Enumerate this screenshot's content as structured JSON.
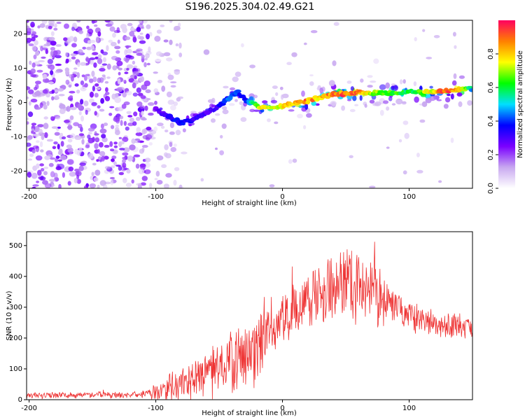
{
  "chart_data": [
    {
      "type": "heatmap",
      "title": "S196.2025.304.02.49.G21",
      "xlabel": "Height of straight line (km)",
      "ylabel": "Frequency (Hz)",
      "xlim": [
        -202,
        150
      ],
      "ylim": [
        -25,
        24
      ],
      "x_ticks": [
        -200,
        -100,
        0,
        100
      ],
      "x_tick_labels": [
        "-200",
        "-100",
        "0",
        "100"
      ],
      "y_ticks": [
        20,
        10,
        0,
        -10,
        -20
      ],
      "y_tick_labels": [
        "20",
        "10",
        "0",
        "-10",
        "-20"
      ],
      "colorbar": {
        "label": "Normalized spectral amplitude",
        "range": [
          0,
          1
        ],
        "ticks": [
          0.0,
          0.2,
          0.4,
          0.6,
          0.8
        ],
        "tick_labels": [
          "0.0",
          "0.2",
          "0.4",
          "0.6",
          "0.8"
        ],
        "colors": [
          "#ffffff",
          "#c8a8f0",
          "#7a00ff",
          "#0000ff",
          "#00e0ff",
          "#00ff00",
          "#ffff00",
          "#ff8000",
          "#ff0060"
        ]
      },
      "ridge": {
        "x": [
          -100,
          -90,
          -80,
          -70,
          -60,
          -50,
          -40,
          -35,
          -30,
          -25,
          -20,
          -15,
          -10,
          0,
          10,
          20,
          30,
          40,
          50,
          60,
          70,
          80,
          90,
          100,
          110,
          120,
          130,
          140,
          150
        ],
        "freq": [
          -2,
          -4,
          -6,
          -5,
          -3,
          -1,
          2,
          3,
          1,
          0,
          -1,
          -1.5,
          -1.5,
          -1,
          0,
          0.5,
          1.5,
          2.5,
          2.5,
          3,
          2.8,
          2.8,
          3,
          3,
          3,
          3.2,
          3.5,
          3.8,
          4
        ],
        "amp": [
          0.25,
          0.35,
          0.4,
          0.35,
          0.3,
          0.35,
          0.45,
          0.4,
          0.4,
          0.55,
          0.7,
          0.85,
          0.8,
          0.8,
          0.85,
          0.9,
          0.85,
          0.9,
          0.95,
          0.9,
          0.75,
          0.7,
          0.65,
          0.6,
          0.7,
          0.85,
          0.95,
          0.9,
          0.5
        ]
      }
    },
    {
      "type": "line",
      "xlabel": "Height of straight line (km)",
      "ylabel": "SNR (10 * v/v)",
      "xlim": [
        -202,
        150
      ],
      "ylim": [
        0,
        545
      ],
      "x_ticks": [
        -200,
        -100,
        0,
        100
      ],
      "x_tick_labels": [
        "-200",
        "-100",
        "0",
        "100"
      ],
      "y_ticks": [
        0,
        100,
        200,
        300,
        400,
        500
      ],
      "y_tick_labels": [
        "0",
        "100",
        "200",
        "300",
        "400",
        "500"
      ],
      "color": "#ee3333",
      "envelope": {
        "x": [
          -202,
          -180,
          -160,
          -140,
          -120,
          -105,
          -100,
          -90,
          -80,
          -70,
          -60,
          -50,
          -40,
          -30,
          -20,
          -10,
          0,
          10,
          20,
          30,
          40,
          50,
          60,
          70,
          80,
          90,
          100,
          110,
          120,
          130,
          140,
          150
        ],
        "mean": [
          15,
          15,
          15,
          15,
          15,
          18,
          25,
          40,
          55,
          70,
          80,
          100,
          120,
          145,
          160,
          210,
          260,
          300,
          330,
          355,
          370,
          380,
          375,
          360,
          330,
          300,
          270,
          260,
          250,
          245,
          240,
          240
        ],
        "spread": [
          10,
          10,
          10,
          10,
          10,
          15,
          25,
          40,
          55,
          60,
          70,
          80,
          90,
          100,
          110,
          110,
          90,
          80,
          90,
          100,
          110,
          120,
          120,
          110,
          90,
          70,
          50,
          45,
          40,
          40,
          40,
          40
        ]
      }
    }
  ]
}
